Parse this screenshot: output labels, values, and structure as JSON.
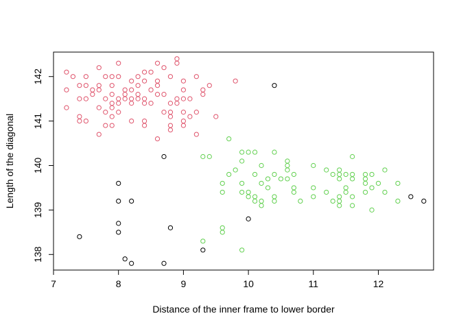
{
  "chart_data": {
    "type": "scatter",
    "xlabel": "Distance of the inner frame to lower border",
    "ylabel": "Length of the diagonal",
    "xlim": [
      7.0,
      12.85
    ],
    "ylim": [
      137.65,
      142.55
    ],
    "xticks": [
      7,
      8,
      9,
      10,
      11,
      12
    ],
    "yticks": [
      138,
      139,
      140,
      141,
      142
    ],
    "grid": false,
    "legend": "none",
    "series": [
      {
        "color": "#DF536B",
        "points": [
          [
            7.2,
            142.1
          ],
          [
            7.2,
            141.7
          ],
          [
            7.2,
            141.3
          ],
          [
            7.3,
            142.0
          ],
          [
            7.4,
            141.8
          ],
          [
            7.4,
            141.5
          ],
          [
            7.4,
            141.1
          ],
          [
            7.4,
            141.0
          ],
          [
            7.5,
            142.0
          ],
          [
            7.5,
            141.8
          ],
          [
            7.5,
            141.5
          ],
          [
            7.5,
            141.0
          ],
          [
            7.6,
            141.7
          ],
          [
            7.6,
            141.6
          ],
          [
            7.7,
            142.2
          ],
          [
            7.7,
            141.8
          ],
          [
            7.7,
            141.7
          ],
          [
            7.7,
            141.3
          ],
          [
            7.7,
            140.7
          ],
          [
            7.8,
            142.0
          ],
          [
            7.8,
            141.5
          ],
          [
            7.8,
            141.2
          ],
          [
            7.8,
            140.9
          ],
          [
            7.9,
            142.0
          ],
          [
            7.9,
            141.8
          ],
          [
            7.9,
            141.6
          ],
          [
            7.9,
            141.4
          ],
          [
            7.9,
            141.3
          ],
          [
            7.9,
            141.1
          ],
          [
            7.9,
            140.9
          ],
          [
            8.0,
            142.3
          ],
          [
            8.0,
            142.0
          ],
          [
            8.0,
            141.5
          ],
          [
            8.0,
            141.4
          ],
          [
            8.0,
            141.2
          ],
          [
            8.1,
            141.7
          ],
          [
            8.1,
            141.6
          ],
          [
            8.1,
            141.5
          ],
          [
            8.2,
            141.9
          ],
          [
            8.2,
            141.7
          ],
          [
            8.2,
            141.5
          ],
          [
            8.2,
            141.4
          ],
          [
            8.2,
            141.0
          ],
          [
            8.3,
            142.0
          ],
          [
            8.3,
            141.8
          ],
          [
            8.3,
            141.6
          ],
          [
            8.3,
            141.5
          ],
          [
            8.4,
            142.1
          ],
          [
            8.4,
            141.9
          ],
          [
            8.4,
            141.5
          ],
          [
            8.4,
            141.4
          ],
          [
            8.4,
            141.0
          ],
          [
            8.4,
            140.9
          ],
          [
            8.5,
            142.1
          ],
          [
            8.5,
            141.7
          ],
          [
            8.5,
            141.4
          ],
          [
            8.6,
            142.3
          ],
          [
            8.6,
            141.9
          ],
          [
            8.6,
            141.8
          ],
          [
            8.6,
            141.6
          ],
          [
            8.6,
            140.6
          ],
          [
            8.7,
            142.2
          ],
          [
            8.7,
            141.6
          ],
          [
            8.7,
            141.2
          ],
          [
            8.8,
            142.0
          ],
          [
            8.8,
            141.4
          ],
          [
            8.8,
            141.2
          ],
          [
            8.8,
            141.1
          ],
          [
            8.8,
            140.9
          ],
          [
            8.8,
            140.8
          ],
          [
            8.9,
            142.4
          ],
          [
            8.9,
            142.3
          ],
          [
            8.9,
            141.5
          ],
          [
            8.9,
            141.4
          ],
          [
            9.0,
            141.9
          ],
          [
            9.0,
            141.7
          ],
          [
            9.0,
            141.5
          ],
          [
            9.0,
            141.2
          ],
          [
            9.0,
            141.0
          ],
          [
            9.0,
            140.9
          ],
          [
            9.1,
            141.5
          ],
          [
            9.1,
            141.1
          ],
          [
            9.2,
            142.0
          ],
          [
            9.2,
            141.2
          ],
          [
            9.2,
            140.7
          ],
          [
            9.3,
            141.7
          ],
          [
            9.3,
            141.6
          ],
          [
            9.4,
            141.8
          ],
          [
            9.5,
            141.1
          ],
          [
            9.8,
            141.9
          ]
        ]
      },
      {
        "color": "#61D04F",
        "points": [
          [
            9.3,
            140.2
          ],
          [
            9.3,
            138.3
          ],
          [
            9.4,
            140.2
          ],
          [
            9.6,
            139.6
          ],
          [
            9.6,
            139.4
          ],
          [
            9.6,
            138.6
          ],
          [
            9.6,
            138.5
          ],
          [
            9.7,
            140.6
          ],
          [
            9.7,
            139.8
          ],
          [
            9.8,
            139.9
          ],
          [
            9.9,
            140.3
          ],
          [
            9.9,
            140.1
          ],
          [
            9.9,
            139.6
          ],
          [
            9.9,
            139.4
          ],
          [
            9.9,
            138.1
          ],
          [
            10.0,
            140.3
          ],
          [
            10.0,
            139.4
          ],
          [
            10.0,
            139.3
          ],
          [
            10.1,
            140.3
          ],
          [
            10.1,
            139.8
          ],
          [
            10.1,
            139.3
          ],
          [
            10.1,
            139.2
          ],
          [
            10.2,
            140.0
          ],
          [
            10.2,
            139.6
          ],
          [
            10.2,
            139.2
          ],
          [
            10.2,
            139.1
          ],
          [
            10.3,
            139.7
          ],
          [
            10.3,
            139.5
          ],
          [
            10.4,
            140.3
          ],
          [
            10.4,
            139.8
          ],
          [
            10.4,
            139.3
          ],
          [
            10.4,
            139.2
          ],
          [
            10.5,
            139.7
          ],
          [
            10.6,
            140.1
          ],
          [
            10.6,
            140.0
          ],
          [
            10.6,
            139.9
          ],
          [
            10.6,
            139.7
          ],
          [
            10.7,
            139.8
          ],
          [
            10.7,
            139.5
          ],
          [
            10.7,
            139.4
          ],
          [
            10.8,
            139.2
          ],
          [
            11.0,
            140.0
          ],
          [
            11.0,
            139.5
          ],
          [
            11.0,
            139.3
          ],
          [
            11.2,
            139.9
          ],
          [
            11.2,
            139.4
          ],
          [
            11.3,
            139.8
          ],
          [
            11.3,
            139.2
          ],
          [
            11.4,
            139.9
          ],
          [
            11.4,
            139.8
          ],
          [
            11.4,
            139.7
          ],
          [
            11.4,
            139.3
          ],
          [
            11.4,
            139.2
          ],
          [
            11.4,
            139.1
          ],
          [
            11.5,
            139.8
          ],
          [
            11.5,
            139.5
          ],
          [
            11.5,
            139.4
          ],
          [
            11.6,
            140.2
          ],
          [
            11.6,
            139.8
          ],
          [
            11.6,
            139.7
          ],
          [
            11.6,
            139.3
          ],
          [
            11.6,
            139.1
          ],
          [
            11.8,
            139.8
          ],
          [
            11.8,
            139.7
          ],
          [
            11.8,
            139.6
          ],
          [
            11.8,
            139.4
          ],
          [
            11.9,
            139.8
          ],
          [
            11.9,
            139.5
          ],
          [
            11.9,
            139.0
          ],
          [
            12.0,
            139.6
          ],
          [
            12.1,
            139.9
          ],
          [
            12.1,
            139.4
          ],
          [
            12.3,
            139.6
          ],
          [
            12.3,
            139.2
          ]
        ]
      },
      {
        "color": "#000000",
        "points": [
          [
            7.4,
            138.4
          ],
          [
            8.0,
            139.6
          ],
          [
            8.0,
            139.2
          ],
          [
            8.0,
            138.7
          ],
          [
            8.0,
            138.5
          ],
          [
            8.1,
            137.9
          ],
          [
            8.2,
            139.2
          ],
          [
            8.2,
            137.8
          ],
          [
            8.7,
            140.2
          ],
          [
            8.7,
            137.8
          ],
          [
            8.8,
            138.6
          ],
          [
            9.3,
            138.1
          ],
          [
            10.0,
            138.8
          ],
          [
            10.4,
            141.8
          ],
          [
            12.5,
            139.3
          ],
          [
            12.7,
            139.2
          ]
        ]
      }
    ]
  }
}
